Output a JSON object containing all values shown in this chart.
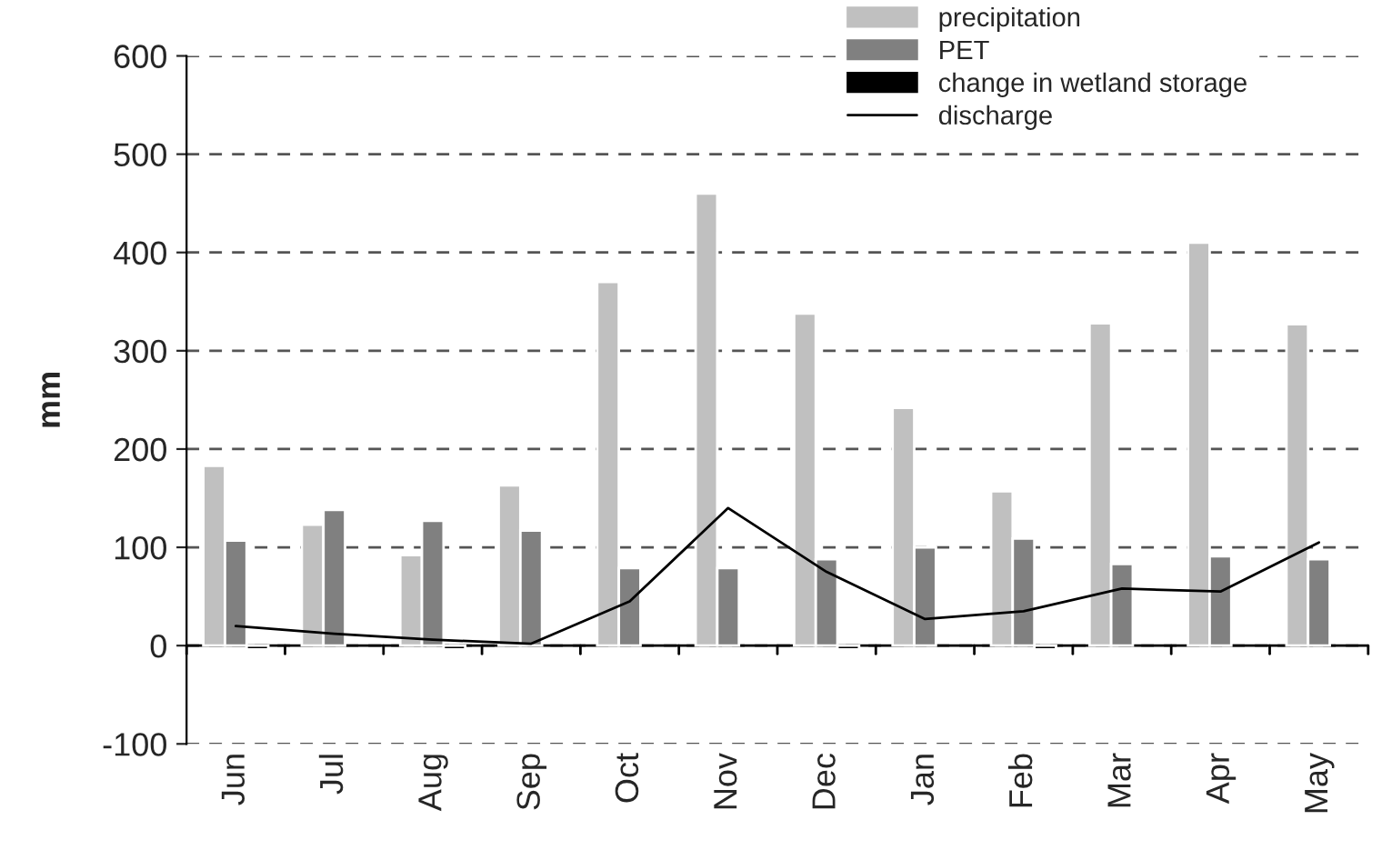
{
  "chart_data": {
    "type": "bar",
    "ylabel": "mm",
    "categories": [
      "Jun",
      "Jul",
      "Aug",
      "Sep",
      "Oct",
      "Nov",
      "Dec",
      "Jan",
      "Feb",
      "Mar",
      "Apr",
      "May"
    ],
    "series": [
      {
        "name": "precipitation",
        "color": "#c0c0c0",
        "values": [
          183,
          123,
          92,
          163,
          370,
          460,
          338,
          242,
          157,
          328,
          410,
          327
        ]
      },
      {
        "name": "PET",
        "color": "#808080",
        "values": [
          107,
          138,
          127,
          117,
          79,
          79,
          88,
          100,
          109,
          83,
          91,
          88
        ]
      },
      {
        "name": "change in wetland storage",
        "color": "#000000",
        "values": [
          -4,
          null,
          -4,
          null,
          null,
          null,
          -4,
          null,
          -4,
          null,
          null,
          null
        ]
      },
      {
        "name": "discharge",
        "color": "#000000",
        "type": "line",
        "values": [
          20,
          12,
          6,
          2,
          45,
          140,
          75,
          27,
          35,
          58,
          55,
          105
        ]
      }
    ],
    "ylim": [
      -100,
      600
    ],
    "yticks": [
      -100,
      0,
      100,
      200,
      300,
      400,
      500,
      600
    ],
    "grid": "y",
    "legend": "top right",
    "line_style": "solid",
    "marker": "none"
  }
}
